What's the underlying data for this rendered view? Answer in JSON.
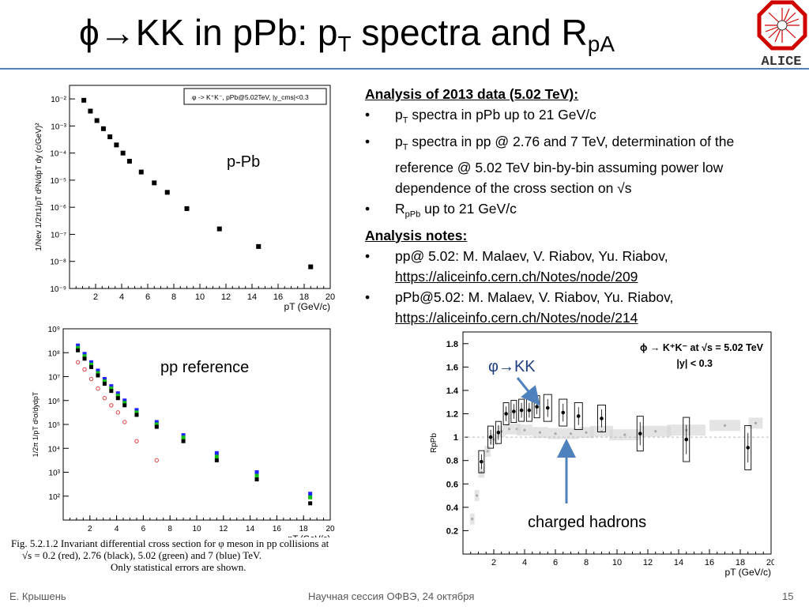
{
  "slide": {
    "title_main": "ϕ→KK in pPb: p",
    "title_sub_T": "T",
    "title_rest": " spectra and R",
    "title_sub_pA": "pA",
    "page_number": "15",
    "author": "Е. Крышень",
    "event": "Научная сессия ОФВЭ, 24 октября",
    "logo_text": "ALICE"
  },
  "notes": {
    "heading1": "Analysis of 2013 data (5.02 TeV):",
    "b1_pre": "p",
    "b1_sub": "T",
    "b1_post": " spectra in pPb up to 21 GeV/c",
    "b2_pre": "p",
    "b2_sub": "T",
    "b2_post": " spectra in pp @ 2.76 and 7 TeV, determination of the reference @ 5.02 TeV bin-by-bin assuming power low dependence of the cross section on √s",
    "b3_pre": "R",
    "b3_sub": "pPb",
    "b3_post": " up to 21 GeV/c",
    "heading2": "Analysis notes:",
    "n1_text": "pp@ 5.02: M. Malaev, V. Riabov, Yu. Riabov,",
    "n1_link": "https://aliceinfo.cern.ch/Notes/node/209",
    "n2_text": "pPb@5.02: M. Malaev, V. Riabov, Yu. Riabov,",
    "n2_link": "https://aliceinfo.cern.ch/Notes/node/214"
  },
  "labels": {
    "ppb_label": "p-Pb",
    "ppref_label": "pp reference",
    "phikk_label": "φ→KK",
    "charged_label": "charged hadrons",
    "caption_l1": "Fig. 5.2.1.2 Invariant differential cross section for φ meson in pp collisions at",
    "caption_l2": "√s = 0.2 (red), 2.76 (black), 5.02 (green) and 7 (blue) TeV.",
    "caption_l3": "Only statistical errors are shown."
  },
  "colors": {
    "accent": "#4f81bd",
    "arrow": "#4f81bd",
    "red": "#e04040",
    "green": "#10c010",
    "blue": "#2020ff"
  },
  "chart_data": [
    {
      "type": "scatter",
      "title": "",
      "legend": "φ -> K⁺K⁻, pPb@5.02TeV, |y_cms|<0.3",
      "xlabel": "p_T (GeV/c)",
      "ylabel": "1/N_ev 1/2π1/p_T d²N/dp_T dy (c/GeV)²",
      "xlim": [
        0,
        20
      ],
      "ylim_log10": [
        -9,
        -1.5
      ],
      "x_ticks": [
        "2",
        "4",
        "6",
        "8",
        "10",
        "12",
        "14",
        "16",
        "18",
        "20"
      ],
      "y_ticks": [
        "10⁻²",
        "10⁻³",
        "10⁻⁴",
        "10⁻⁵",
        "10⁻⁶",
        "10⁻⁷",
        "10⁻⁸",
        "10⁻⁹"
      ],
      "series": [
        {
          "x": [
            1.1,
            1.6,
            2.1,
            2.6,
            3.1,
            3.6,
            4.1,
            4.6,
            5.5,
            6.5,
            7.5,
            9.0,
            11.5,
            14.5,
            18.5
          ],
          "y_log10": [
            -2.05,
            -2.45,
            -2.8,
            -3.1,
            -3.4,
            -3.7,
            -4.0,
            -4.3,
            -4.7,
            -5.1,
            -5.45,
            -6.05,
            -6.8,
            -7.45,
            -8.2
          ]
        }
      ]
    },
    {
      "type": "scatter",
      "title": "",
      "xlabel": "p_T (GeV/c)",
      "ylabel": "1/2π 1/p_T d²σ/dydp_T",
      "xlim": [
        0,
        20
      ],
      "ylim_log10": [
        1,
        9
      ],
      "x_ticks": [
        "2",
        "4",
        "6",
        "8",
        "10",
        "12",
        "14",
        "16",
        "18",
        "20"
      ],
      "y_ticks": [
        "10²",
        "10³",
        "10⁴",
        "10⁵",
        "10⁶",
        "10⁷",
        "10⁸",
        "10⁹"
      ],
      "series": [
        {
          "name": "0.2",
          "x": [
            1.1,
            1.6,
            2.1,
            2.6,
            3.1,
            3.6,
            4.1,
            4.6,
            5.5,
            7.0
          ],
          "y_log10": [
            7.6,
            7.3,
            6.9,
            6.5,
            6.1,
            5.8,
            5.5,
            5.1,
            4.3,
            3.5
          ]
        },
        {
          "name": "2.76",
          "x": [
            1.1,
            1.6,
            2.1,
            2.6,
            3.1,
            3.6,
            4.1,
            4.6,
            5.5,
            7.0,
            9.0,
            11.5,
            14.5,
            18.5
          ],
          "y_log10": [
            8.1,
            7.75,
            7.4,
            7.05,
            6.7,
            6.4,
            6.1,
            5.8,
            5.4,
            4.9,
            4.3,
            3.5,
            2.7,
            1.7
          ]
        },
        {
          "name": "5.02",
          "x": [
            1.1,
            1.6,
            2.1,
            2.6,
            3.1,
            3.6,
            4.1,
            4.6,
            5.5,
            7.0,
            9.0,
            11.5,
            14.5,
            18.5
          ],
          "y_log10": [
            8.2,
            7.85,
            7.5,
            7.15,
            6.8,
            6.5,
            6.2,
            5.9,
            5.5,
            5.0,
            4.45,
            3.65,
            2.85,
            1.95
          ]
        },
        {
          "name": "7",
          "x": [
            1.1,
            1.6,
            2.1,
            2.6,
            3.1,
            3.6,
            4.1,
            4.6,
            5.5,
            7.0,
            9.0,
            11.5,
            14.5,
            18.5
          ],
          "y_log10": [
            8.3,
            7.95,
            7.6,
            7.25,
            6.9,
            6.6,
            6.3,
            6.0,
            5.6,
            5.1,
            4.55,
            3.8,
            3.0,
            2.1
          ]
        }
      ]
    },
    {
      "type": "scatter",
      "title": "",
      "legend": "ϕ → K⁺K⁻ at √s = 5.02 TeV, |y| < 0.3",
      "xlabel": "p_T (GeV/c)",
      "ylabel": "R_pPb",
      "xlim": [
        0,
        20
      ],
      "ylim": [
        0,
        1.9
      ],
      "x_ticks": [
        "2",
        "4",
        "6",
        "8",
        "10",
        "12",
        "14",
        "16",
        "18",
        "20"
      ],
      "y_ticks": [
        "0.2",
        "0.4",
        "0.6",
        "0.8",
        "1",
        "1.2",
        "1.4",
        "1.6",
        "1.8"
      ],
      "series": [
        {
          "name": "φ→KK",
          "x": [
            1.2,
            1.8,
            2.3,
            2.8,
            3.3,
            3.8,
            4.3,
            4.8,
            5.5,
            6.5,
            7.5,
            9.0,
            11.5,
            14.5,
            18.5
          ],
          "y": [
            0.79,
            1.0,
            1.04,
            1.2,
            1.22,
            1.23,
            1.23,
            1.26,
            1.25,
            1.21,
            1.18,
            1.16,
            1.03,
            0.98,
            0.91
          ]
        },
        {
          "name": "charged hadrons",
          "x": [
            0.6,
            0.9,
            1.2,
            1.6,
            2.0,
            2.5,
            3.0,
            3.5,
            4.0,
            5.0,
            6.0,
            7.0,
            8.0,
            9.0,
            10.5,
            12.5,
            14.5,
            17.0,
            19.0
          ],
          "y": [
            0.3,
            0.5,
            0.7,
            0.88,
            0.98,
            1.05,
            1.07,
            1.07,
            1.06,
            1.04,
            1.03,
            1.03,
            1.04,
            1.05,
            1.02,
            1.05,
            1.06,
            1.1,
            1.12
          ]
        }
      ]
    }
  ]
}
